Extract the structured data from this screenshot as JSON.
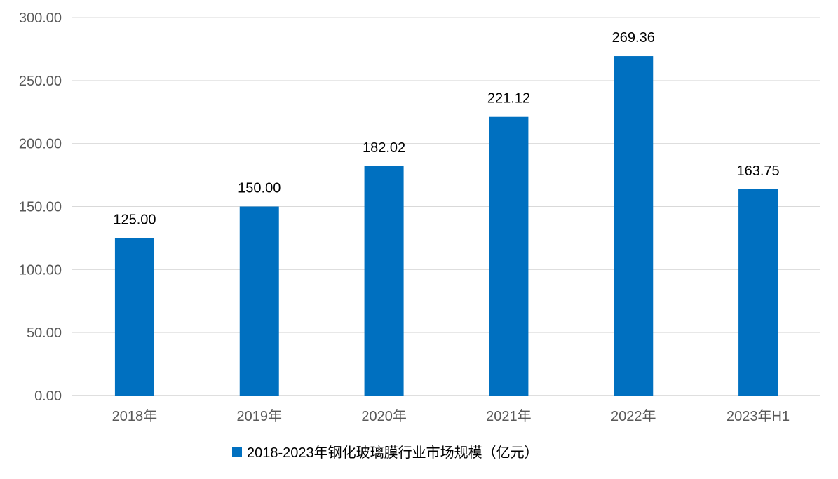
{
  "chart_data": {
    "type": "bar",
    "categories": [
      "2018年",
      "2019年",
      "2020年",
      "2021年",
      "2022年",
      "2023年H1"
    ],
    "series": [
      {
        "name": "2018-2023年钢化玻璃膜行业市场规模（亿元）",
        "values": [
          125.0,
          150.0,
          182.02,
          221.12,
          269.36,
          163.75
        ],
        "data_labels": [
          "125.00",
          "150.00",
          "182.02",
          "221.12",
          "269.36",
          "163.75"
        ]
      }
    ],
    "y_ticks": [
      "0.00",
      "50.00",
      "100.00",
      "150.00",
      "200.00",
      "250.00",
      "300.00"
    ],
    "ylim": [
      0,
      300
    ],
    "grid": true,
    "legend_position": "bottom",
    "colors": {
      "bar": "#0070C0",
      "grid": "#D9D9D9",
      "axis": "#BFBFBF"
    }
  }
}
